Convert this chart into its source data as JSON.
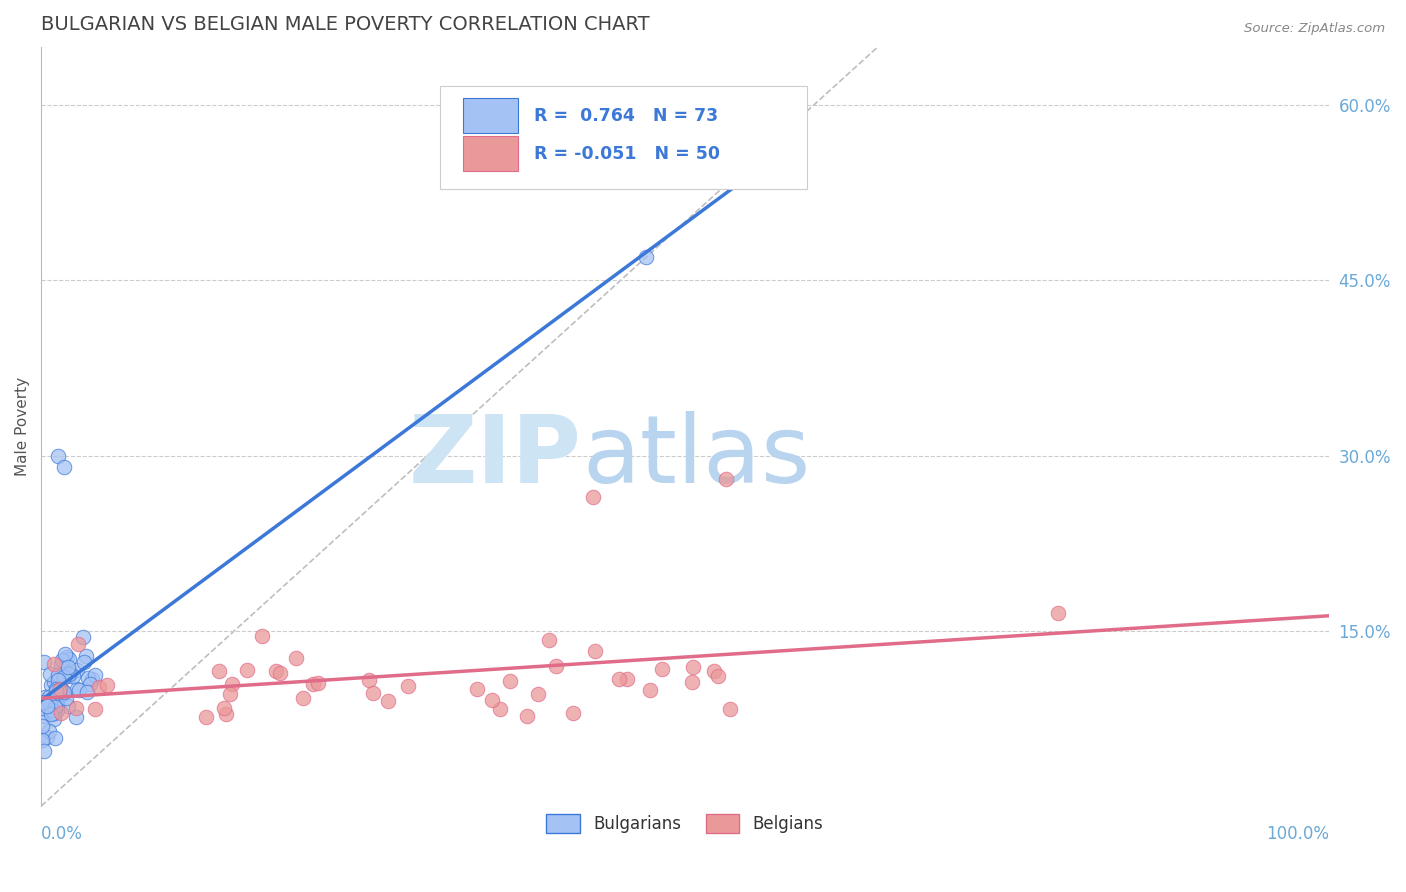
{
  "title": "BULGARIAN VS BELGIAN MALE POVERTY CORRELATION CHART",
  "source_text": "Source: ZipAtlas.com",
  "ylabel": "Male Poverty",
  "xlim": [
    0.0,
    1.0
  ],
  "ylim": [
    0.0,
    0.65
  ],
  "bulgarian_R": 0.764,
  "bulgarian_N": 73,
  "belgian_R": -0.051,
  "belgian_N": 50,
  "bulgarian_color": "#a4c2f4",
  "belgian_color": "#ea9999",
  "trend_bulgarian_color": "#3c78d8",
  "trend_belgian_color": "#e06c8a",
  "ref_line_color": "#b7b7b7",
  "grid_color": "#cccccc",
  "bg_color": "#ffffff",
  "watermark_zip_color": "#cfe2f3",
  "watermark_atlas_color": "#a4c2f4",
  "title_color": "#434343",
  "axis_label_color": "#6aa9d8",
  "right_tick_color": "#6aa9d8",
  "legend_R_color": "#3c78d8",
  "legend_neg_R_color": "#cc4477",
  "legend_N_color": "#3c78d8"
}
